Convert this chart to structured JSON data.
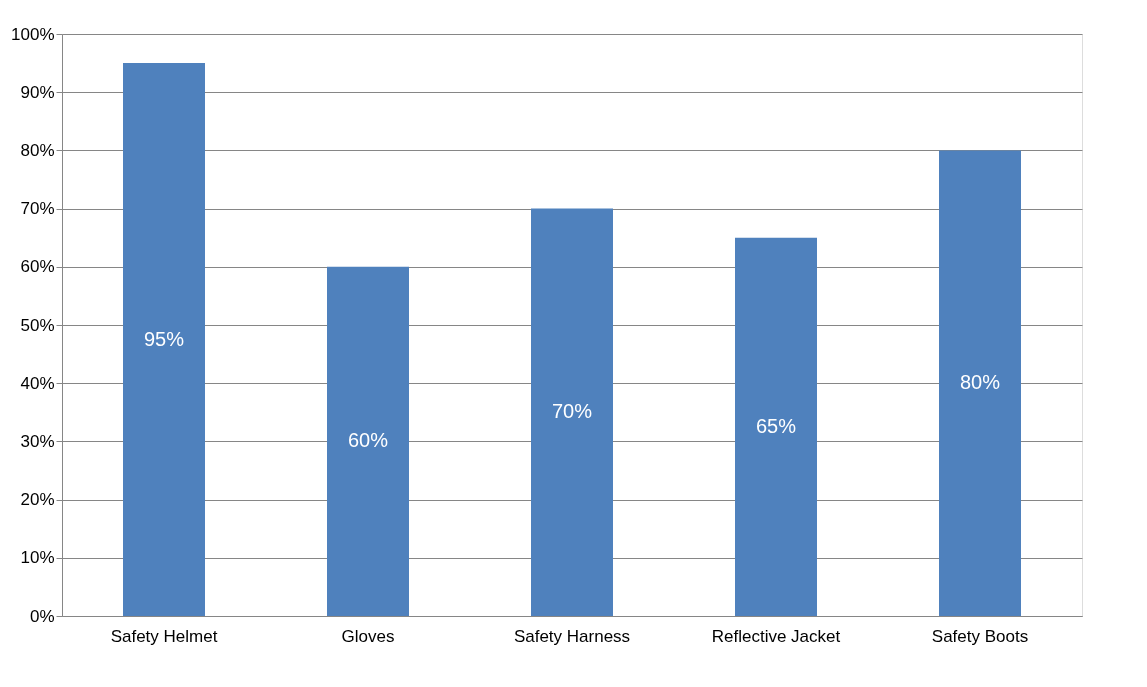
{
  "chart_data": {
    "type": "bar",
    "categories": [
      "Safety Helmet",
      "Gloves",
      "Safety Harness",
      "Reflective Jacket",
      "Safety Boots"
    ],
    "values": [
      95,
      60,
      70,
      65,
      80
    ],
    "value_labels": [
      "95%",
      "60%",
      "70%",
      "65%",
      "80%"
    ],
    "color": "#4f81bd",
    "ylim": [
      0,
      100
    ],
    "yticks": [
      {
        "value": 0,
        "label": "0%"
      },
      {
        "value": 10,
        "label": "10%"
      },
      {
        "value": 20,
        "label": "20%"
      },
      {
        "value": 30,
        "label": "30%"
      },
      {
        "value": 40,
        "label": "40%"
      },
      {
        "value": 50,
        "label": "50%"
      },
      {
        "value": 60,
        "label": "60%"
      },
      {
        "value": 70,
        "label": "70%"
      },
      {
        "value": 80,
        "label": "80%"
      },
      {
        "value": 90,
        "label": "90%"
      },
      {
        "value": 100,
        "label": "100%"
      }
    ],
    "grid": "y"
  }
}
